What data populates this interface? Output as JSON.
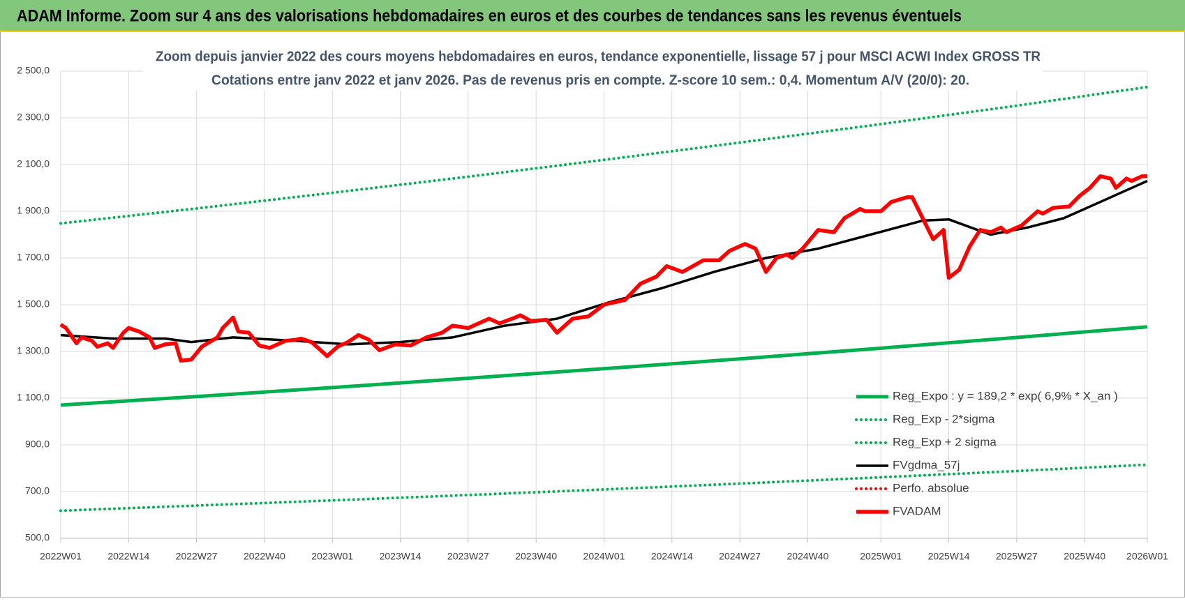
{
  "chart_data": {
    "type": "line",
    "header": "ADAM Informe. Zoom sur 4 ans des valorisations hebdomadaires en euros et des courbes de tendances sans les revenus éventuels",
    "title": "Zoom depuis janvier 2022 des cours moyens hebdomadaires en euros, tendance exponentielle, lissage 57 j pour MSCI ACWI Index GROSS TR",
    "subtitle": "Cotations entre janv 2022 et janv 2026. Pas de revenus pris en compte. Z-score 10 sem.: 0,4. Momentum A/V (20/0): 20.",
    "xlim": [
      0,
      208
    ],
    "xticks": [
      {
        "value": 0,
        "label": "2022W01"
      },
      {
        "value": 13,
        "label": "2022W14"
      },
      {
        "value": 26,
        "label": "2022W27"
      },
      {
        "value": 39,
        "label": "2022W40"
      },
      {
        "value": 52,
        "label": "2023W01"
      },
      {
        "value": 65,
        "label": "2023W14"
      },
      {
        "value": 78,
        "label": "2023W27"
      },
      {
        "value": 91,
        "label": "2023W40"
      },
      {
        "value": 104,
        "label": "2024W01"
      },
      {
        "value": 117,
        "label": "2024W14"
      },
      {
        "value": 130,
        "label": "2024W27"
      },
      {
        "value": 143,
        "label": "2024W40"
      },
      {
        "value": 157,
        "label": "2025W01"
      },
      {
        "value": 170,
        "label": "2025W14"
      },
      {
        "value": 183,
        "label": "2025W27"
      },
      {
        "value": 196,
        "label": "2025W40"
      },
      {
        "value": 208,
        "label": "2026W01"
      }
    ],
    "ylim": [
      500,
      2500
    ],
    "yticks": [
      {
        "value": 500,
        "label": "500,0"
      },
      {
        "value": 700,
        "label": "700,0"
      },
      {
        "value": 900,
        "label": "900,0"
      },
      {
        "value": 1100,
        "label": "1 100,0"
      },
      {
        "value": 1300,
        "label": "1 300,0"
      },
      {
        "value": 1500,
        "label": "1 500,0"
      },
      {
        "value": 1700,
        "label": "1 700,0"
      },
      {
        "value": 1900,
        "label": "1 900,0"
      },
      {
        "value": 2100,
        "label": "2 100,0"
      },
      {
        "value": 2300,
        "label": "2 300,0"
      },
      {
        "value": 2500,
        "label": "2 500,0"
      }
    ],
    "grid": true,
    "legend": "lower right",
    "series": [
      {
        "name": "Reg_Expo : y = 189,2 * exp( 6,9% *  X_an )",
        "color": "#00b050",
        "line_style": "solid",
        "x": [
          0,
          26,
          52,
          78,
          104,
          130,
          156,
          182,
          208
        ],
        "values": [
          1070,
          1107,
          1145,
          1185,
          1226,
          1268,
          1312,
          1358,
          1405
        ]
      },
      {
        "name": "Reg_Exp - 2*sigma",
        "color": "#00b050",
        "line_style": "dotted",
        "x": [
          0,
          26,
          52,
          78,
          104,
          130,
          156,
          182,
          208
        ],
        "values": [
          618,
          640,
          662,
          685,
          709,
          734,
          760,
          787,
          815
        ]
      },
      {
        "name": "Reg_Exp + 2 sigma",
        "color": "#00b050",
        "line_style": "dotted",
        "x": [
          0,
          26,
          52,
          78,
          104,
          130,
          156,
          182,
          208
        ],
        "values": [
          1848,
          1912,
          1979,
          2048,
          2120,
          2194,
          2270,
          2349,
          2432
        ]
      },
      {
        "name": "FVgdma_57j",
        "color": "#000000",
        "line_style": "solid",
        "x": [
          0,
          10,
          20,
          25,
          33,
          45,
          55,
          65,
          75,
          85,
          95,
          105,
          115,
          125,
          135,
          145,
          155,
          165,
          170,
          178,
          185,
          192,
          200,
          208
        ],
        "values": [
          1370,
          1355,
          1355,
          1340,
          1360,
          1345,
          1330,
          1340,
          1360,
          1410,
          1440,
          1510,
          1570,
          1640,
          1700,
          1740,
          1800,
          1860,
          1865,
          1800,
          1830,
          1870,
          1950,
          2030
        ]
      },
      {
        "name": "Perfo. absolue",
        "color": "#ff0000",
        "line_style": "dotted",
        "x": [],
        "values": []
      },
      {
        "name": "FVADAM",
        "color": "#ff0000",
        "line_style": "thick",
        "x": [
          0,
          1,
          3,
          4,
          6,
          7,
          9,
          10,
          12,
          13,
          15,
          17,
          18,
          20,
          22,
          23,
          25,
          27,
          30,
          31,
          33,
          34,
          36,
          38,
          40,
          43,
          45,
          46,
          48,
          51,
          53,
          55,
          57,
          59,
          61,
          64,
          67,
          70,
          73,
          75,
          78,
          82,
          84,
          87,
          88,
          90,
          93,
          95,
          98,
          101,
          104,
          108,
          111,
          114,
          116,
          119,
          123,
          126,
          128,
          131,
          133,
          135,
          137,
          139,
          140,
          142,
          145,
          148,
          150,
          153,
          154,
          157,
          159,
          162,
          163,
          165,
          167,
          169,
          170,
          172,
          174,
          176,
          178,
          180,
          181,
          184,
          187,
          188,
          190,
          193,
          195,
          197,
          199,
          201,
          202,
          204,
          205,
          207,
          208
        ],
        "values": [
          1415,
          1400,
          1335,
          1360,
          1345,
          1320,
          1335,
          1315,
          1380,
          1400,
          1385,
          1360,
          1315,
          1330,
          1335,
          1260,
          1265,
          1320,
          1360,
          1400,
          1445,
          1385,
          1380,
          1325,
          1315,
          1345,
          1350,
          1355,
          1340,
          1280,
          1320,
          1340,
          1370,
          1350,
          1305,
          1330,
          1325,
          1360,
          1380,
          1410,
          1400,
          1440,
          1420,
          1445,
          1455,
          1430,
          1435,
          1380,
          1440,
          1450,
          1500,
          1520,
          1590,
          1620,
          1665,
          1640,
          1690,
          1690,
          1730,
          1760,
          1740,
          1640,
          1700,
          1715,
          1700,
          1740,
          1820,
          1810,
          1870,
          1910,
          1900,
          1900,
          1940,
          1960,
          1960,
          1870,
          1780,
          1820,
          1615,
          1650,
          1750,
          1820,
          1810,
          1830,
          1810,
          1840,
          1900,
          1890,
          1915,
          1920,
          1965,
          2000,
          2050,
          2040,
          2000,
          2040,
          2030,
          2050,
          2050
        ]
      }
    ]
  }
}
